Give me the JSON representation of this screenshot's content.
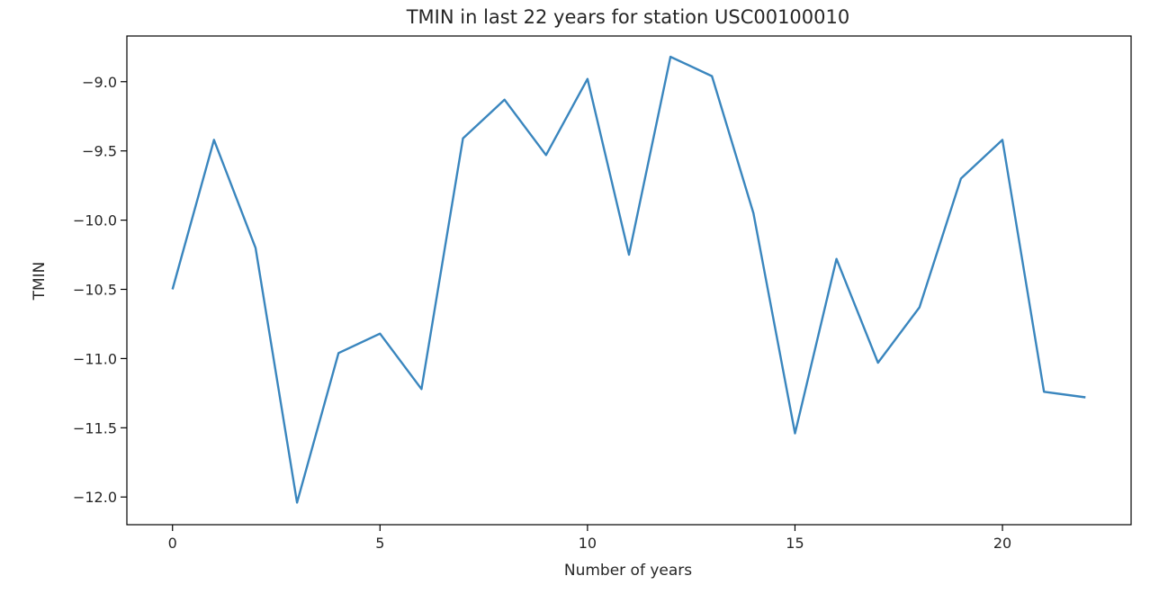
{
  "chart_data": {
    "type": "line",
    "title": "TMIN in last 22 years for station USC00100010",
    "xlabel": "Number of years",
    "ylabel": "TMIN",
    "xlim": [
      -1.1,
      23.1
    ],
    "ylim": [
      -12.2,
      -8.67
    ],
    "xticks": [
      0,
      5,
      10,
      15,
      20
    ],
    "xtick_labels": [
      "0",
      "5",
      "10",
      "15",
      "20"
    ],
    "yticks": [
      -9.0,
      -9.5,
      -10.0,
      -10.5,
      -11.0,
      -11.5,
      -12.0
    ],
    "ytick_labels": [
      "−9.0",
      "−9.5",
      "−10.0",
      "−10.5",
      "−11.0",
      "−11.5",
      "−12.0"
    ],
    "grid": false,
    "series": [
      {
        "color": "#3a86be",
        "x": [
          0,
          1,
          2,
          3,
          4,
          5,
          6,
          7,
          8,
          9,
          10,
          11,
          12,
          13,
          14,
          15,
          16,
          17,
          18,
          19,
          20,
          21,
          22
        ],
        "y": [
          -10.5,
          -9.42,
          -10.2,
          -12.04,
          -10.96,
          -10.82,
          -11.22,
          -9.41,
          -9.13,
          -9.53,
          -8.98,
          -10.25,
          -8.82,
          -8.96,
          -9.95,
          -11.54,
          -10.28,
          -11.03,
          -10.63,
          -9.7,
          -9.42,
          -11.24,
          -11.28
        ]
      }
    ]
  }
}
